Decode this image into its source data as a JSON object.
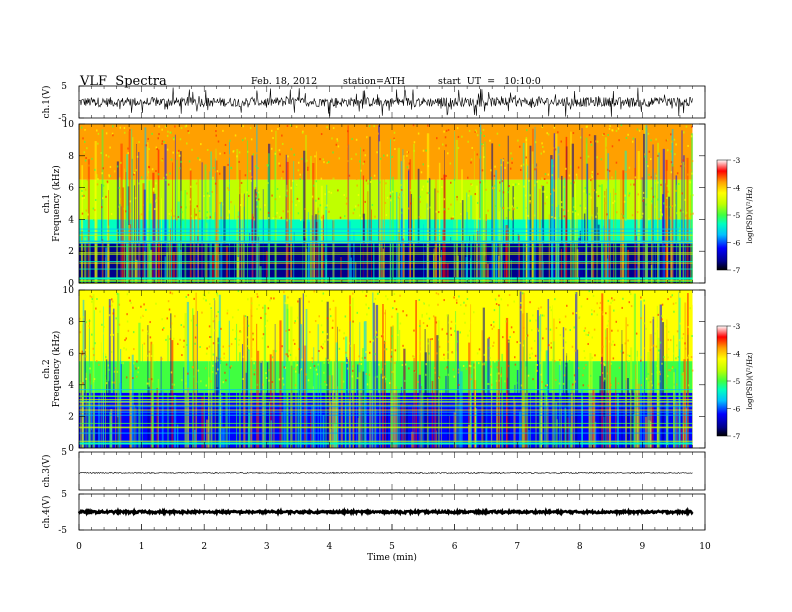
{
  "header": {
    "title": "VLF  Spectra",
    "date": "Feb. 18, 2012",
    "station": "station=ATH",
    "start": "start  UT  =   10:10:0"
  },
  "colors": {
    "spectrogram_scale": [
      "#000000",
      "#00008b",
      "#0000ff",
      "#00c0ff",
      "#00ffc0",
      "#40ff40",
      "#c0ff00",
      "#ffff00",
      "#ffa000",
      "#ff3000",
      "#ff0000"
    ],
    "waveform": "#000000"
  },
  "chart_data": [
    {
      "type": "line",
      "panel": "ch1-waveform",
      "ylabel": "ch.1(V)",
      "yticks": [
        "5",
        "-5"
      ],
      "ylim": [
        -5,
        5
      ],
      "xlim": [
        0,
        10
      ],
      "description_series": {
        "name": "",
        "baseline": 0,
        "noise_amplitude": 1.5,
        "x_end": 9.8
      }
    },
    {
      "type": "heatmap",
      "panel": "ch1-spectrogram",
      "ylabel": "Frequency (kHz)",
      "channel_label": "ch.1",
      "yticks": [
        "0",
        "2",
        "4",
        "6",
        "8",
        "10"
      ],
      "ylim": [
        0,
        10
      ],
      "xlim": [
        0,
        9.8
      ],
      "colorbar": {
        "label": "log(PSD)(V²/Hz)",
        "ticks": [
          "-3",
          "-4",
          "-5",
          "-6",
          "-7"
        ],
        "range": [
          -7,
          -3
        ]
      },
      "bands": [
        {
          "fmin": 0,
          "fmax": 2.5,
          "level": -6.6
        },
        {
          "fmin": 2.5,
          "fmax": 4,
          "level": -5.6
        },
        {
          "fmin": 4,
          "fmax": 6.5,
          "level": -4.8
        },
        {
          "fmin": 6.5,
          "fmax": 10,
          "level": -3.8
        }
      ]
    },
    {
      "type": "heatmap",
      "panel": "ch2-spectrogram",
      "ylabel": "Frequency (kHz)",
      "channel_label": "ch.2",
      "yticks": [
        "0",
        "2",
        "4",
        "6",
        "8",
        "10"
      ],
      "ylim": [
        0,
        10
      ],
      "xlim": [
        0,
        9.8
      ],
      "colorbar": {
        "label": "log(PSD)(V²/Hz)",
        "ticks": [
          "-3",
          "-4",
          "-5",
          "-6",
          "-7"
        ],
        "range": [
          -7,
          -3
        ]
      },
      "bands": [
        {
          "fmin": 0,
          "fmax": 3.5,
          "level": -6.2
        },
        {
          "fmin": 3.5,
          "fmax": 5.5,
          "level": -5.1
        },
        {
          "fmin": 5.5,
          "fmax": 10,
          "level": -4.2
        }
      ]
    },
    {
      "type": "line",
      "panel": "ch3-waveform",
      "ylabel": "ch.3(V)",
      "yticks": [
        "5"
      ],
      "ylim": [
        -5,
        5
      ],
      "xlim": [
        0,
        10
      ],
      "description_series": {
        "name": "",
        "baseline": -0.5,
        "noise_amplitude": 0.15,
        "x_end": 9.8
      }
    },
    {
      "type": "line",
      "panel": "ch4-waveform",
      "ylabel": "ch.4(V)",
      "yticks": [
        "5",
        "-5"
      ],
      "ylim": [
        -5,
        5
      ],
      "xlim": [
        0,
        10
      ],
      "description_series": {
        "name": "",
        "baseline": 0,
        "noise_amplitude": 0.3,
        "x_end": 9.8
      }
    }
  ],
  "xaxis": {
    "label": "Time  (min)",
    "ticks": [
      "0",
      "1",
      "2",
      "3",
      "4",
      "5",
      "6",
      "7",
      "8",
      "9",
      "10"
    ],
    "xlim": [
      0,
      10
    ]
  }
}
